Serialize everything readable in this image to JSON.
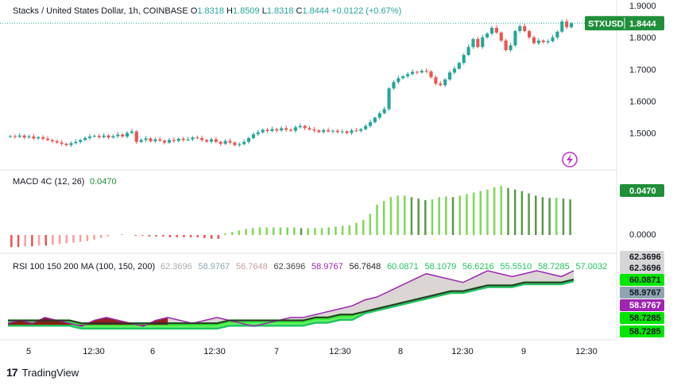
{
  "header": {
    "symbol_title": "Stacks / United States Dollar, 1h, COINBASE",
    "o_label": "O",
    "o_value": "1.8318",
    "h_label": "H",
    "h_value": "1.8509",
    "l_label": "L",
    "l_value": "1.8318",
    "c_label": "C",
    "c_value": "1.8444",
    "change": "+0.0122 (+0.67%)"
  },
  "price_tag": {
    "symbol": "STXUSD",
    "value": "1.8444"
  },
  "price_axis_ticks": [
    "1.9000",
    "1.8000",
    "1.7000",
    "1.6000",
    "1.5000"
  ],
  "macd": {
    "title": "MACD 4C (12, 26)",
    "value": "0.0470",
    "tag_value": "0.0470",
    "zero_label": "0.0000"
  },
  "rsi": {
    "title": "RSI 100 150 200 MA (100, 150, 200)",
    "legend_values": [
      {
        "text": "62.3696",
        "color": "#aaaaaa"
      },
      {
        "text": "58.9767",
        "color": "#8ea4b0"
      },
      {
        "text": "56.7648",
        "color": "#c8a0a0"
      },
      {
        "text": "62.3696",
        "color": "#444444"
      },
      {
        "text": "58.9767",
        "color": "#9c27b0"
      },
      {
        "text": "56.7648",
        "color": "#222222"
      },
      {
        "text": "60.0871",
        "color": "#22c55e"
      },
      {
        "text": "58.1079",
        "color": "#22c55e"
      },
      {
        "text": "56.6216",
        "color": "#22c55e"
      },
      {
        "text": "55.5510",
        "color": "#22c55e"
      },
      {
        "text": "58.7285",
        "color": "#22c55e"
      },
      {
        "text": "57.0032",
        "color": "#22c55e"
      }
    ],
    "axis_tags": [
      {
        "text": "62.3696",
        "bg": "#d6d6d6",
        "fg": "#131722"
      },
      {
        "text": "62.3696",
        "bg": "#d6d6d6",
        "fg": "#131722"
      },
      {
        "text": "60.0871",
        "bg": "#00e600",
        "fg": "#131722"
      },
      {
        "text": "58.9767",
        "bg": "#8ea4b0",
        "fg": "#131722"
      },
      {
        "text": "58.9767",
        "bg": "#9c27b0",
        "fg": "#ffffff"
      },
      {
        "text": "58.7285",
        "bg": "#00e600",
        "fg": "#131722"
      },
      {
        "text": "58.7285",
        "bg": "#00e600",
        "fg": "#131722"
      }
    ]
  },
  "time_axis": [
    "5",
    "12:30",
    "6",
    "12:30",
    "7",
    "12:30",
    "8",
    "12:30",
    "9",
    "12:30"
  ],
  "footer": {
    "brand": "TradingView"
  },
  "colors": {
    "up": "#26a69a",
    "down": "#ef5350",
    "up_alt": "#22ab94",
    "macd_up": "#7ed957",
    "macd_down": "#ef5350",
    "tag_green": "#1f8f3a"
  },
  "chart_data": [
    {
      "type": "candlestick",
      "title": "Stacks / United States Dollar, 1h, COINBASE",
      "ylim": [
        1.43,
        1.9
      ],
      "x_ticks": [
        "5",
        "12:30",
        "6",
        "12:30",
        "7",
        "12:30",
        "8",
        "12:30",
        "9",
        "12:30"
      ],
      "close": [
        1.49,
        1.488,
        1.492,
        1.486,
        1.489,
        1.483,
        1.487,
        1.482,
        1.478,
        1.474,
        1.47,
        1.466,
        1.462,
        1.468,
        1.472,
        1.478,
        1.484,
        1.489,
        1.491,
        1.487,
        1.492,
        1.486,
        1.49,
        1.495,
        1.489,
        1.5,
        1.505,
        1.472,
        1.478,
        1.483,
        1.474,
        1.48,
        1.476,
        1.47,
        1.478,
        1.475,
        1.482,
        1.478,
        1.48,
        1.486,
        1.484,
        1.478,
        1.473,
        1.48,
        1.472,
        1.466,
        1.475,
        1.47,
        1.462,
        1.465,
        1.472,
        1.484,
        1.496,
        1.502,
        1.51,
        1.506,
        1.512,
        1.508,
        1.515,
        1.51,
        1.507,
        1.518,
        1.522,
        1.515,
        1.511,
        1.508,
        1.503,
        1.509,
        1.505,
        1.507,
        1.503,
        1.505,
        1.5,
        1.508,
        1.507,
        1.512,
        1.522,
        1.534,
        1.548,
        1.562,
        1.575,
        1.64,
        1.66,
        1.672,
        1.678,
        1.685,
        1.692,
        1.69,
        1.695,
        1.693,
        1.675,
        1.655,
        1.65,
        1.668,
        1.69,
        1.702,
        1.72,
        1.745,
        1.77,
        1.795,
        1.77,
        1.8,
        1.812,
        1.83,
        1.815,
        1.79,
        1.76,
        1.775,
        1.82,
        1.835,
        1.82,
        1.8,
        1.782,
        1.79,
        1.785,
        1.788,
        1.8,
        1.818,
        1.85,
        1.832,
        1.844
      ],
      "ma_lines_rsi_note": "",
      "last_price": 1.8444
    },
    {
      "type": "bar",
      "title": "MACD 4C (12, 26)",
      "last_value": 0.047,
      "values": [
        -0.016,
        -0.016,
        -0.015,
        -0.015,
        -0.014,
        -0.014,
        -0.013,
        -0.012,
        -0.011,
        -0.01,
        -0.009,
        -0.008,
        -0.006,
        -0.004,
        -0.002,
        0.0,
        0.001,
        0.0,
        -0.001,
        -0.001,
        -0.002,
        -0.002,
        -0.002,
        -0.003,
        -0.003,
        -0.003,
        -0.003,
        -0.003,
        -0.004,
        -0.005,
        -0.005,
        0.002,
        0.004,
        0.006,
        0.008,
        0.009,
        0.01,
        0.01,
        0.01,
        0.01,
        0.01,
        0.01,
        0.009,
        0.009,
        0.009,
        0.009,
        0.01,
        0.011,
        0.012,
        0.013,
        0.016,
        0.02,
        0.028,
        0.04,
        0.045,
        0.05,
        0.052,
        0.052,
        0.05,
        0.048,
        0.046,
        0.047,
        0.05,
        0.051,
        0.05,
        0.052,
        0.054,
        0.056,
        0.058,
        0.06,
        0.063,
        0.065,
        0.062,
        0.06,
        0.058,
        0.055,
        0.052,
        0.05,
        0.049,
        0.049,
        0.048,
        0.047
      ]
    },
    {
      "type": "area",
      "title": "RSI 100 150 200 MA (100, 150, 200)",
      "series": [
        {
          "name": "RSI",
          "values": [
            44,
            45,
            44,
            46,
            45,
            44,
            43,
            45,
            46,
            45,
            44,
            43,
            45,
            46,
            45,
            44,
            45,
            46,
            45,
            44,
            43,
            44,
            45,
            46,
            46,
            47,
            48,
            49,
            50,
            52,
            53,
            55,
            57,
            59,
            61,
            60,
            59,
            58,
            60,
            62,
            61,
            60,
            61,
            62,
            61,
            60,
            62
          ]
        },
        {
          "name": "MA",
          "values": [
            45,
            45,
            45,
            45,
            45,
            45,
            44,
            44,
            44,
            44,
            44,
            44,
            44,
            44,
            44,
            44,
            44,
            44,
            45,
            45,
            45,
            45,
            45,
            45,
            45,
            46,
            46,
            47,
            47,
            48,
            49,
            50,
            51,
            52,
            53,
            54,
            55,
            55,
            56,
            57,
            57,
            57,
            58,
            58,
            58,
            58,
            59
          ]
        }
      ]
    }
  ]
}
